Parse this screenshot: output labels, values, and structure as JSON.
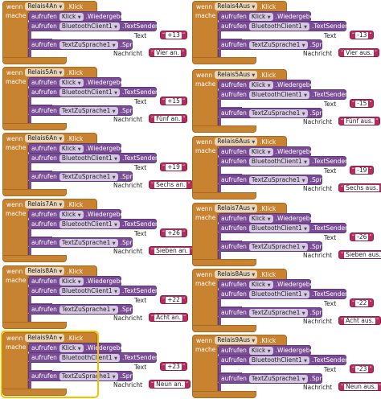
{
  "labels": {
    "wenn": "wenn",
    "mache": "mache",
    "aufrufen": "aufrufen",
    "click_event": ".Klick",
    "klick_component": "Klick",
    "wiedergeben": ".Wiedergeben",
    "bt_component": "BluetoothClient1",
    "textsenden": ".TextSenden",
    "text_param": "Text",
    "tts_component": "TextZuSprache1",
    "sprich": ".Sprich",
    "nachricht_param": "Nachricht"
  },
  "colors": {
    "event": "#C88330",
    "procedure": "#7A4C95",
    "text": "#B32D5E",
    "selected_outline": "#f2c200"
  },
  "icons": {
    "dropdown": "chevron-down-icon"
  },
  "handlers": [
    {
      "button": "Relais4An",
      "send": "+13",
      "speak": "Vier an."
    },
    {
      "button": "Relais4Aus",
      "send": "-13",
      "speak": "Vier aus."
    },
    {
      "button": "Relais5An",
      "send": "+15",
      "speak": "Fünf an."
    },
    {
      "button": "Relais5Aus",
      "send": "-15",
      "speak": "Fünf aus."
    },
    {
      "button": "Relais6An",
      "send": "+19",
      "speak": "Sechs an."
    },
    {
      "button": "Relais6Aus",
      "send": "-19",
      "speak": "Sechs aus."
    },
    {
      "button": "Relais7An",
      "send": "+26",
      "speak": "Sieben an."
    },
    {
      "button": "Relais7Aus",
      "send": "-26",
      "speak": "Sieben aus."
    },
    {
      "button": "Relais8An",
      "send": "+22",
      "speak": "Acht an."
    },
    {
      "button": "Relais8Aus",
      "send": "-22",
      "speak": "Acht aus."
    },
    {
      "button": "Relais9An",
      "send": "+23",
      "speak": "Neun an."
    },
    {
      "button": "Relais9Aus",
      "send": "-23",
      "speak": "Neun aus."
    }
  ]
}
